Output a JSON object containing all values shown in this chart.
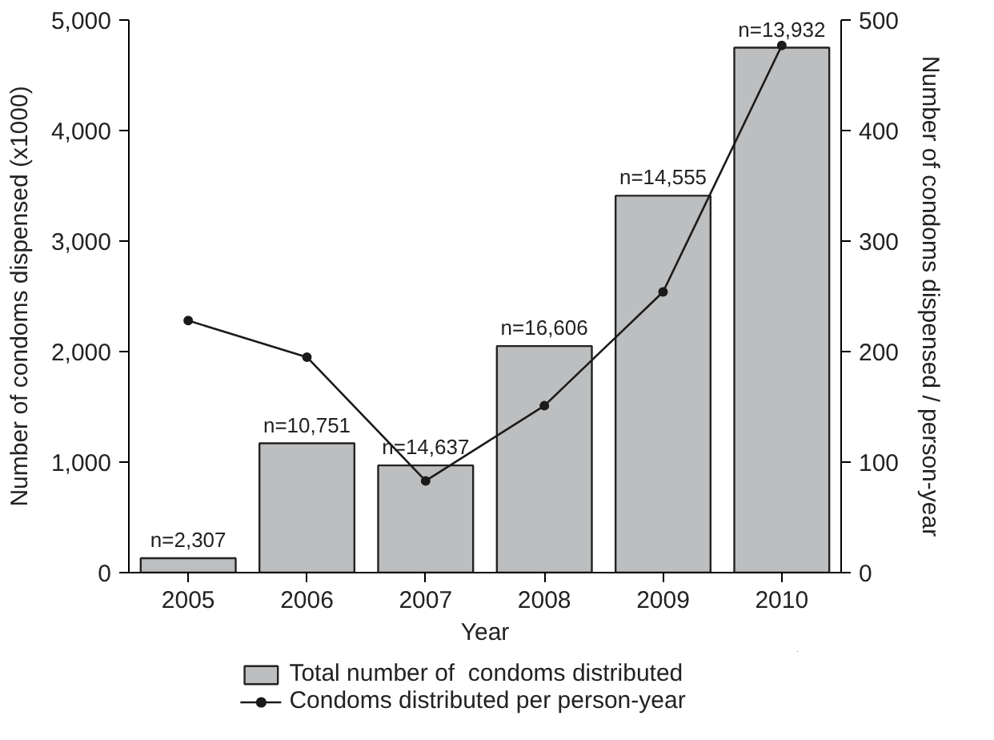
{
  "chart_data": {
    "type": "bar",
    "xlabel": "Year",
    "ylabel": "Number of condoms dispensed (x1000)",
    "y2label": "Number of condoms dispensed / person-year",
    "categories": [
      "2005",
      "2006",
      "2007",
      "2008",
      "2009",
      "2010"
    ],
    "series": [
      {
        "name": "Total number of  condoms distributed",
        "color": "#bcbec0",
        "values": [
          130,
          1170,
          970,
          2050,
          3410,
          4750
        ]
      },
      {
        "name": "Condoms distributed per person-year",
        "type": "line",
        "axis": "y2",
        "color": "#1a1a1a",
        "marker": "circle",
        "values": [
          228,
          195,
          83,
          151,
          254,
          477
        ]
      }
    ],
    "ylim": [
      0,
      5000
    ],
    "yticks": [
      {
        "value": 0,
        "label": "0"
      },
      {
        "value": 1000,
        "label": "1,000"
      },
      {
        "value": 2000,
        "label": "2,000"
      },
      {
        "value": 3000,
        "label": "3,000"
      },
      {
        "value": 4000,
        "label": "4,000"
      },
      {
        "value": 5000,
        "label": "5,000"
      }
    ],
    "y2lim": [
      0,
      500
    ],
    "y2ticks": [
      0,
      100,
      200,
      300,
      400,
      500
    ],
    "annotations": [
      {
        "text": "n=2,307",
        "x": "2005",
        "y": 130
      },
      {
        "text": "n=10,751",
        "x": "2006",
        "y": 1170
      },
      {
        "text": "n=14,637",
        "x": "2007",
        "y": 970
      },
      {
        "text": "n=16,606",
        "x": "2008",
        "y": 2050
      },
      {
        "text": "n=14,555",
        "x": "2009",
        "y": 3410
      },
      {
        "text": "n=13,932",
        "x": "2010",
        "y": 4750
      }
    ],
    "grid": false,
    "legend": "bottom"
  }
}
